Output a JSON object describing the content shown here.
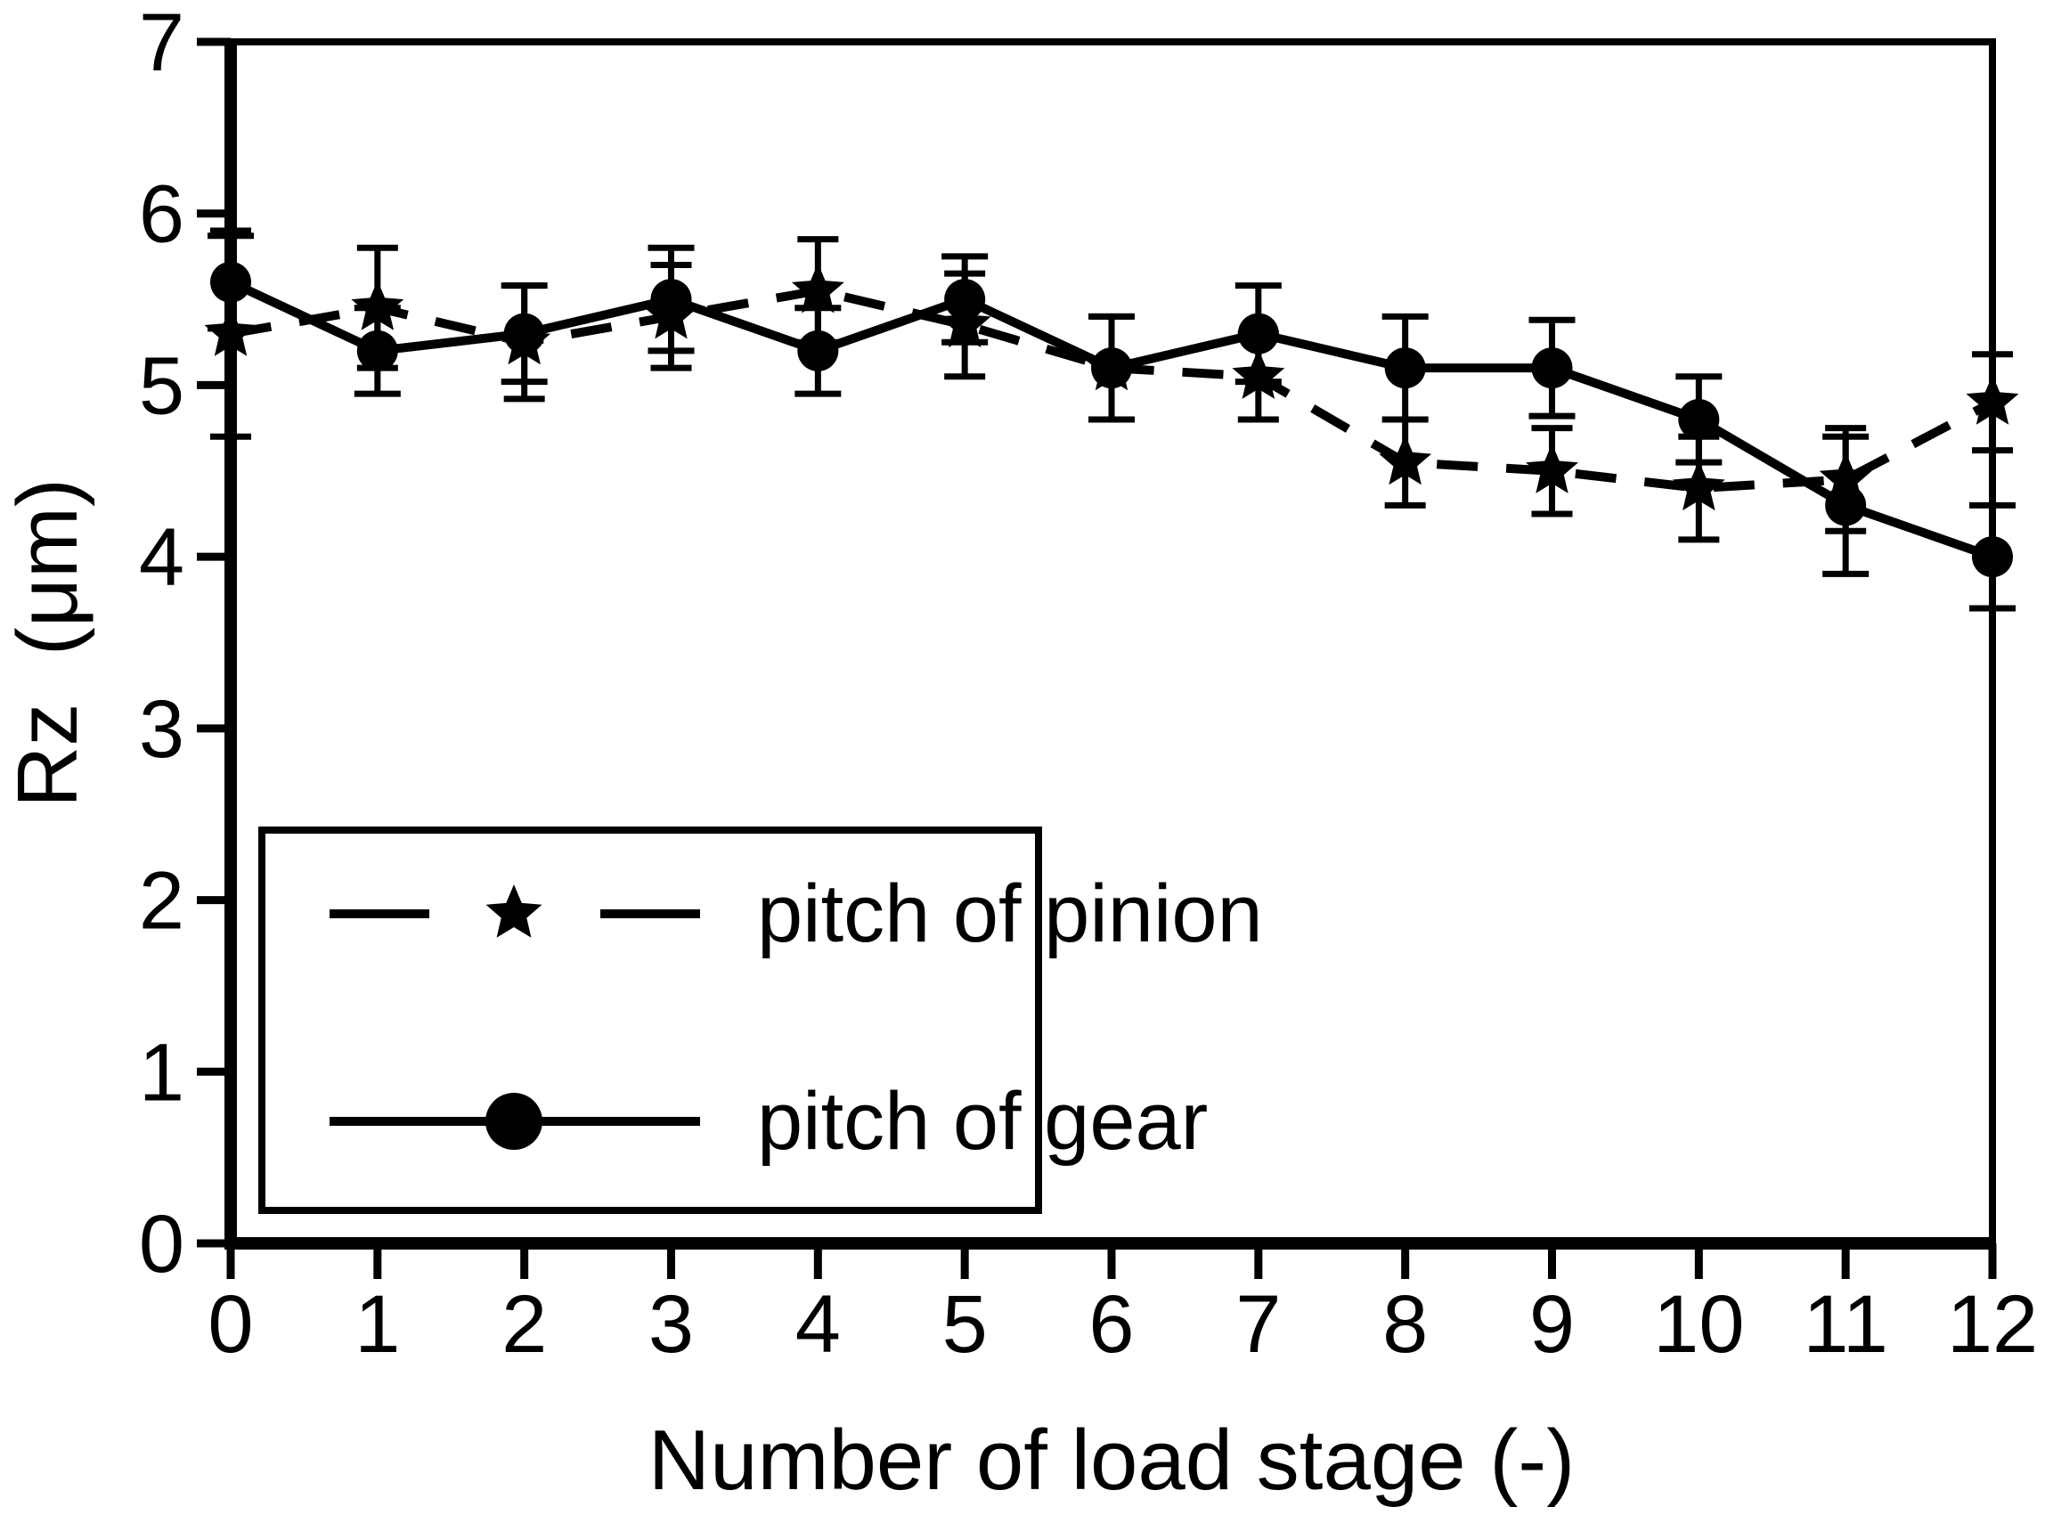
{
  "figure": {
    "background": "#ffffff",
    "ink": "#000000"
  },
  "chart_data": {
    "type": "line",
    "title": "",
    "xlabel": "Number of load stage (-)",
    "ylabel": "Rz  (μm)",
    "xlim": [
      0,
      12
    ],
    "ylim": [
      0,
      7
    ],
    "x_ticks": [
      0,
      1,
      2,
      3,
      4,
      5,
      6,
      7,
      8,
      9,
      10,
      11,
      12
    ],
    "y_ticks": [
      0,
      1,
      2,
      3,
      4,
      5,
      6,
      7
    ],
    "grid": false,
    "legend_position": "inside-lower-left",
    "x": [
      0,
      1,
      2,
      3,
      4,
      5,
      6,
      7,
      8,
      9,
      10,
      11,
      12
    ],
    "series": [
      {
        "name": "pitch of pinion",
        "line_style": "dashed",
        "marker": "star",
        "values": [
          5.3,
          5.45,
          5.25,
          5.4,
          5.55,
          5.35,
          5.1,
          5.05,
          4.55,
          4.5,
          4.4,
          4.45,
          4.9
        ],
        "errors": [
          0.6,
          0.35,
          0.33,
          0.3,
          0.3,
          0.3,
          0.3,
          0.25,
          0.25,
          0.25,
          0.3,
          0.3,
          0.28
        ]
      },
      {
        "name": "pitch of gear",
        "line_style": "solid",
        "marker": "circle",
        "values": [
          5.6,
          5.2,
          5.3,
          5.5,
          5.2,
          5.5,
          5.1,
          5.3,
          5.1,
          5.1,
          4.8,
          4.3,
          4.0
        ],
        "errors": [
          0.27,
          0.25,
          0.28,
          0.3,
          0.25,
          0.25,
          0.3,
          0.28,
          0.3,
          0.28,
          0.25,
          0.4,
          0.3
        ]
      }
    ]
  }
}
